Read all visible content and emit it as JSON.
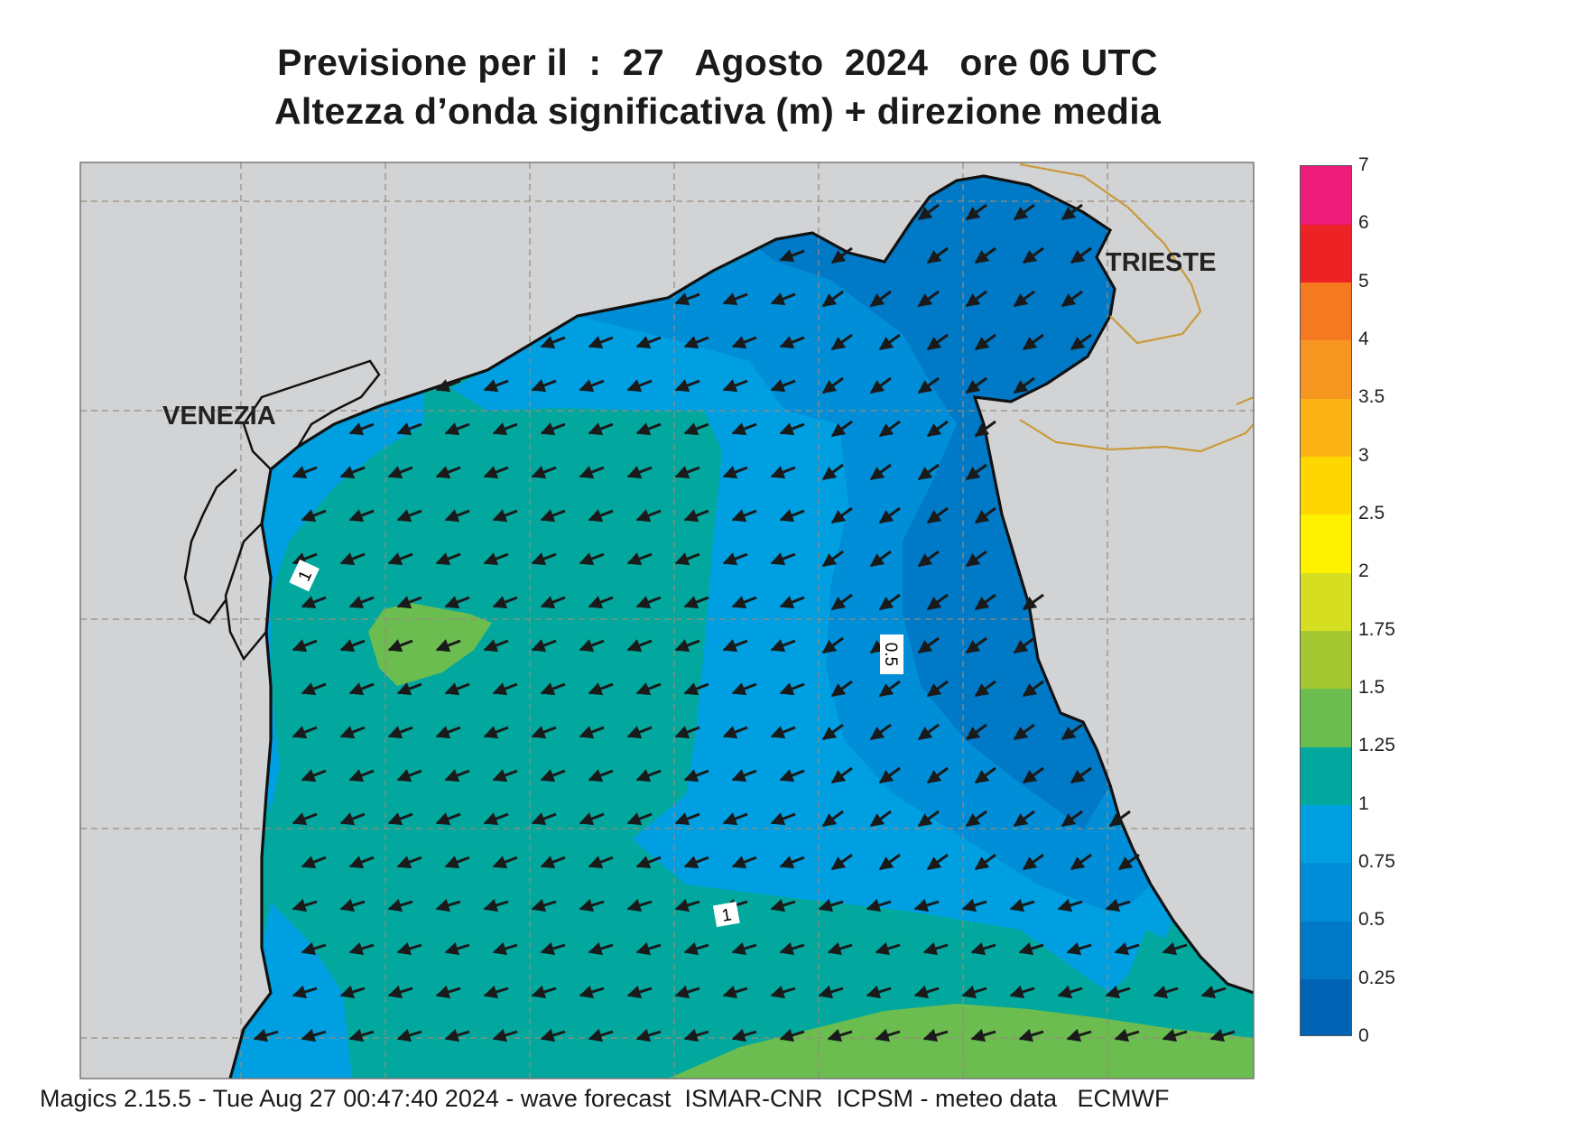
{
  "title_line1": "Previsione per il  :  27   Agosto  2024   ore 06 UTC",
  "title_line2": "Altezza d’onda significativa (m) + direzione media",
  "cities": {
    "venezia": "VENEZIA",
    "trieste": "TRIESTE"
  },
  "contour_labels": {
    "upper_left": "1",
    "east": "0.5",
    "south": "1"
  },
  "legend": {
    "ticks": [
      "0",
      "0.25",
      "0.5",
      "0.75",
      "1",
      "1.25",
      "1.5",
      "1.75",
      "2",
      "2.5",
      "3",
      "3.5",
      "4",
      "5",
      "6",
      "7"
    ],
    "colors": [
      "#0063b4",
      "#0079c6",
      "#008ed8",
      "#009fe2",
      "#02a89e",
      "#6bbd50",
      "#a5c832",
      "#d6de22",
      "#fff200",
      "#fed600",
      "#fbb316",
      "#f89622",
      "#f47920",
      "#ed2224",
      "#ed1c79"
    ]
  },
  "map_colors": {
    "land": "#d2d3d5",
    "sea_025_05": "#0079c6",
    "sea_05_075": "#008ed8",
    "sea_075_1": "#009fe2",
    "sea_1_125": "#02a89e",
    "sea_125_15": "#6bbd50",
    "border": "#c99a3a"
  },
  "footer": "Magics 2.15.5 - Tue Aug 27 00:47:40 2024 - wave forecast  ISMAR-CNR  ICPSM - meteo data   ECMWF"
}
